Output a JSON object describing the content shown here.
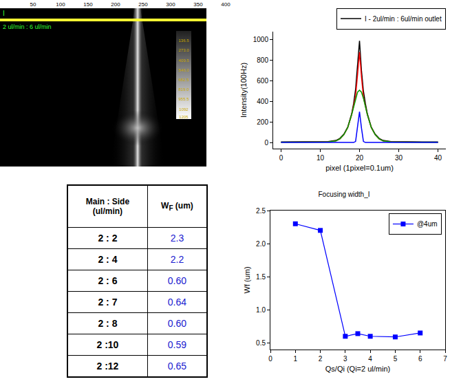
{
  "image_panel": {
    "xticks": [
      50,
      100,
      150,
      200,
      250,
      300,
      350,
      400
    ],
    "label": "I",
    "condition": "2 ul/min : 6 ul/min",
    "colorbar_ticks": [
      136.5,
      {
        "value": 273,
        "label": "273.0"
      },
      409.5,
      {
        "value": 546,
        "label": "546.0"
      },
      682.5,
      {
        "value": 819,
        "label": "819.0"
      },
      955.5,
      1092,
      1205
    ]
  },
  "table": {
    "header": [
      {
        "text": "Main : Side",
        "unit": "(ul/min)"
      },
      {
        "text": "W",
        "subscript": "F",
        "unit": "(um)"
      }
    ],
    "rows": [
      [
        "2 : 2",
        "2.3"
      ],
      [
        "2 : 4",
        "2.2"
      ],
      [
        "2 : 6",
        "0.60"
      ],
      [
        "2 : 7",
        "0.64"
      ],
      [
        "2 : 8",
        "0.60"
      ],
      [
        "2 :10",
        "0.59"
      ],
      [
        "2 :12",
        "0.65"
      ]
    ]
  },
  "chart_data": [
    {
      "type": "line",
      "xlabel": "pixel (1pixel=0.1um)",
      "ylabel": "Intensity(100Hz)",
      "x": [
        0,
        2,
        4,
        6,
        8,
        10,
        12,
        14,
        15,
        16,
        17,
        18,
        18.5,
        19,
        19.5,
        20,
        20.5,
        21,
        21.5,
        22,
        23,
        24,
        25,
        26,
        28,
        30,
        32,
        34,
        36,
        38,
        40
      ],
      "series": [
        {
          "name": "I - 2ul/min : 6ul/min outlet",
          "color": "#000000",
          "values": [
            5,
            5,
            6,
            5,
            6,
            7,
            9,
            20,
            40,
            80,
            150,
            280,
            380,
            520,
            750,
            990,
            700,
            500,
            380,
            280,
            150,
            80,
            40,
            20,
            9,
            7,
            6,
            5,
            6,
            5,
            5
          ]
        },
        {
          "color": "#ff0000",
          "values": [
            2,
            2,
            2,
            2,
            3,
            4,
            6,
            15,
            35,
            75,
            145,
            270,
            355,
            450,
            660,
            880,
            640,
            440,
            355,
            270,
            145,
            75,
            35,
            15,
            6,
            4,
            3,
            2,
            2,
            2,
            2
          ]
        },
        {
          "color": "#00a000",
          "values": [
            2,
            2,
            2,
            2,
            3,
            4,
            6,
            15,
            35,
            75,
            145,
            270,
            350,
            430,
            490,
            510,
            490,
            430,
            350,
            270,
            145,
            75,
            35,
            15,
            6,
            4,
            3,
            2,
            2,
            2,
            2
          ]
        },
        {
          "color": "#0000ff",
          "values": [
            0,
            0,
            0,
            0,
            0,
            0,
            0,
            0,
            0,
            0,
            0,
            0,
            0,
            10,
            140,
            300,
            140,
            10,
            0,
            0,
            0,
            0,
            0,
            0,
            0,
            0,
            0,
            0,
            0,
            0,
            0
          ]
        }
      ],
      "xlim": [
        -2,
        42
      ],
      "xticks": [
        0,
        10,
        20,
        30,
        40
      ],
      "ylim": [
        -60,
        1080
      ],
      "yticks": [
        0,
        200,
        400,
        600,
        800,
        1000
      ],
      "grid": false,
      "legend": "top right"
    },
    {
      "type": "line",
      "title": "Focusing width_I",
      "xlabel": "Qs/Qi (Qi=2 ul/min)",
      "ylabel": "Wf (um)",
      "x": [
        1,
        2,
        3,
        3.5,
        4,
        5,
        6
      ],
      "series": [
        {
          "name": "@4um",
          "color": "#0000ff",
          "marker": "square",
          "values": [
            2.3,
            2.2,
            0.6,
            0.64,
            0.6,
            0.59,
            0.65
          ]
        }
      ],
      "xlim": [
        0,
        7
      ],
      "xticks": [
        0,
        1,
        2,
        3,
        4,
        5,
        6,
        7
      ],
      "ylim": [
        0.4,
        2.5
      ],
      "yticks": [
        0.5,
        {
          "value": 1,
          "label": "1.0"
        },
        1.5,
        {
          "value": 2,
          "label": "2.0"
        },
        2.5
      ],
      "grid": false,
      "legend": "top right"
    }
  ]
}
